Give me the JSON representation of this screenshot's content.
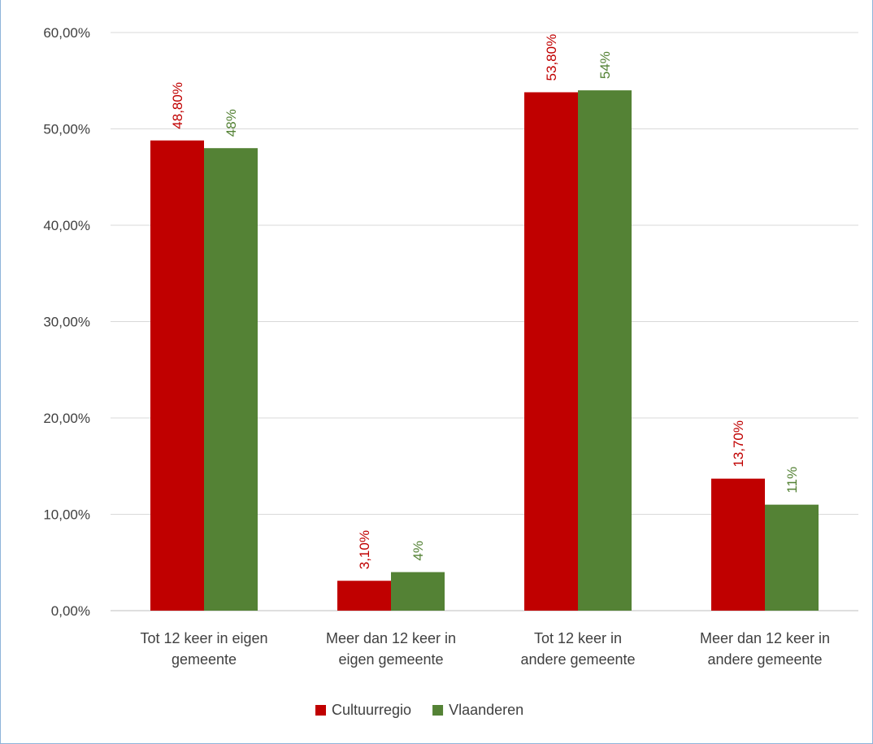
{
  "chart_data": {
    "type": "bar",
    "title": "",
    "xlabel": "",
    "ylabel": "",
    "ylim": [
      0,
      0.6
    ],
    "yticks": [
      0,
      0.1,
      0.2,
      0.3,
      0.4,
      0.5,
      0.6
    ],
    "ytick_labels": [
      "0,00%",
      "10,00%",
      "20,00%",
      "30,00%",
      "40,00%",
      "50,00%",
      "60,00%"
    ],
    "grid": true,
    "legend_position": "bottom",
    "categories": [
      [
        "Tot 12 keer in eigen",
        "gemeente"
      ],
      [
        "Meer dan 12 keer in",
        "eigen gemeente"
      ],
      [
        "Tot 12 keer in",
        "andere gemeente"
      ],
      [
        "Meer dan 12 keer in",
        "andere gemeente"
      ]
    ],
    "series": [
      {
        "name": "Cultuurregio",
        "color": "#c00000",
        "values": [
          0.488,
          0.031,
          0.538,
          0.137
        ],
        "labels": [
          "48,80%",
          "3,10%",
          "53,80%",
          "13,70%"
        ]
      },
      {
        "name": "Vlaanderen",
        "color": "#548235",
        "values": [
          0.48,
          0.04,
          0.54,
          0.11
        ],
        "labels": [
          "48%",
          "4%",
          "54%",
          "11%"
        ]
      }
    ]
  }
}
